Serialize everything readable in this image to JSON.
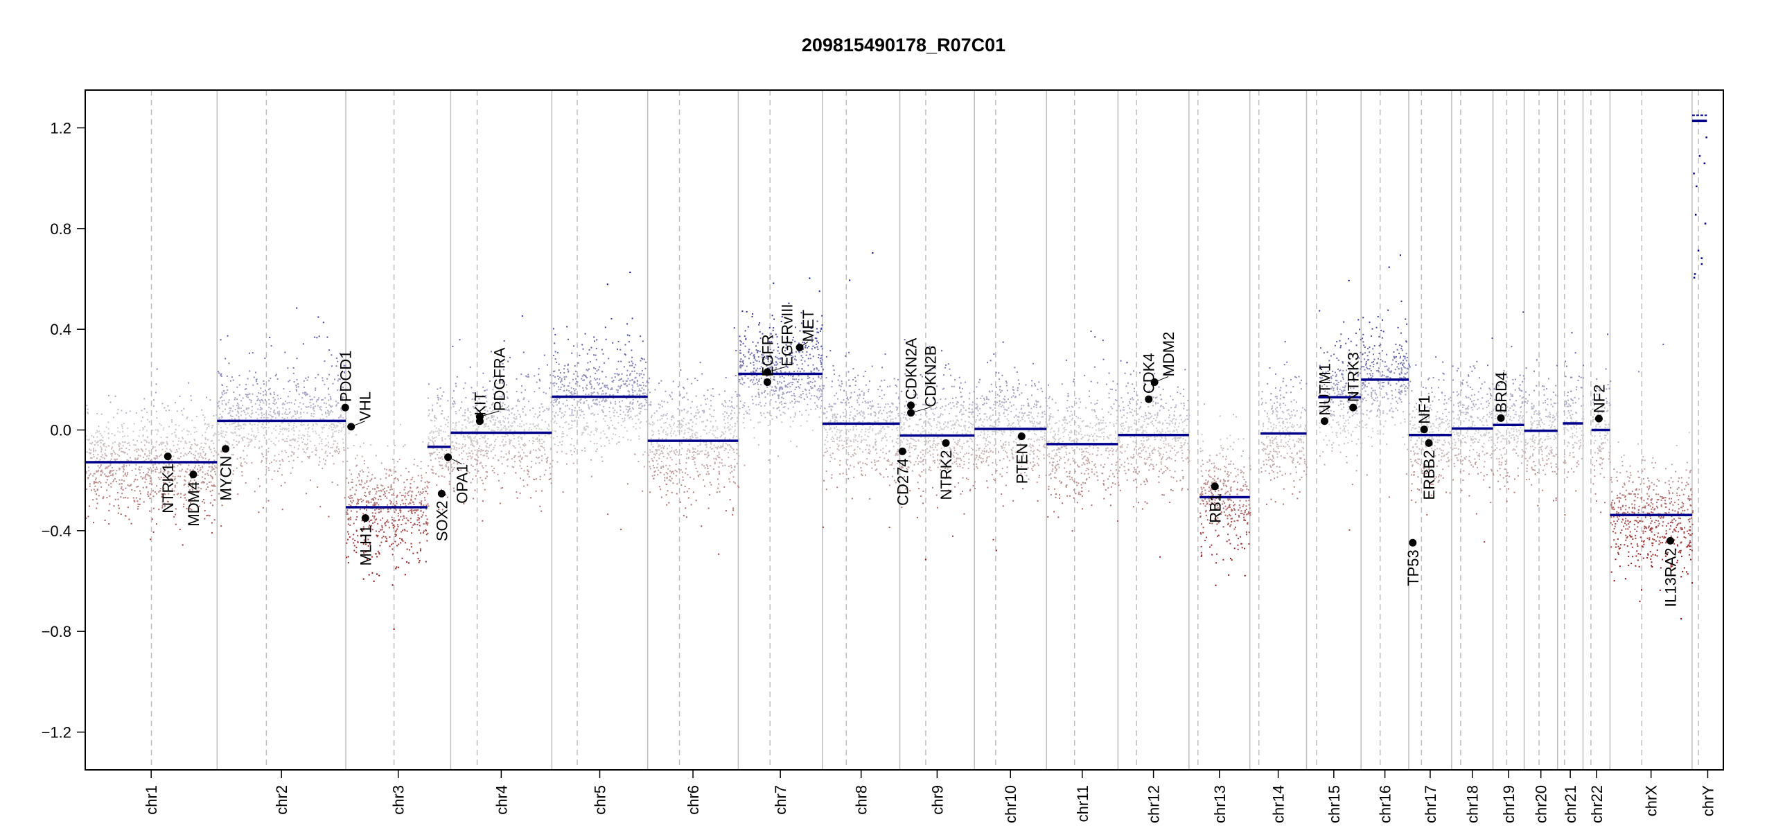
{
  "chart_data": {
    "type": "scatter",
    "title": "209815490178_R07C01",
    "xlabel": "",
    "ylabel": "",
    "ylim": [
      -1.35,
      1.35
    ],
    "yticks": [
      "1.2",
      "0.8",
      "0.4",
      "0.0",
      "−0.4",
      "−0.8",
      "−1.2"
    ],
    "ytick_values": [
      1.2,
      0.8,
      0.4,
      0.0,
      -0.4,
      -0.8,
      -1.2
    ],
    "grid": false,
    "colors": {
      "segment": "#00008b",
      "gain": "#00008b",
      "loss": "#8b0000",
      "neutral": "#d3d3d3",
      "gene": "#000000",
      "boundary": "#bebebe",
      "centromere": "#bebebe"
    },
    "chromosomes": [
      {
        "name": "chr1",
        "length_mb": 249,
        "centromere_mb": 125
      },
      {
        "name": "chr2",
        "length_mb": 243,
        "centromere_mb": 93
      },
      {
        "name": "chr3",
        "length_mb": 198,
        "centromere_mb": 91
      },
      {
        "name": "chr4",
        "length_mb": 191,
        "centromere_mb": 50
      },
      {
        "name": "chr5",
        "length_mb": 181,
        "centromere_mb": 48
      },
      {
        "name": "chr6",
        "length_mb": 171,
        "centromere_mb": 60
      },
      {
        "name": "chr7",
        "length_mb": 159,
        "centromere_mb": 60
      },
      {
        "name": "chr8",
        "length_mb": 146,
        "centromere_mb": 45
      },
      {
        "name": "chr9",
        "length_mb": 141,
        "centromere_mb": 49
      },
      {
        "name": "chr10",
        "length_mb": 136,
        "centromere_mb": 40
      },
      {
        "name": "chr11",
        "length_mb": 135,
        "centromere_mb": 53
      },
      {
        "name": "chr12",
        "length_mb": 134,
        "centromere_mb": 35
      },
      {
        "name": "chr13",
        "length_mb": 115,
        "centromere_mb": 17
      },
      {
        "name": "chr14",
        "length_mb": 107,
        "centromere_mb": 17
      },
      {
        "name": "chr15",
        "length_mb": 103,
        "centromere_mb": 19
      },
      {
        "name": "chr16",
        "length_mb": 90,
        "centromere_mb": 36
      },
      {
        "name": "chr17",
        "length_mb": 81,
        "centromere_mb": 24
      },
      {
        "name": "chr18",
        "length_mb": 78,
        "centromere_mb": 17
      },
      {
        "name": "chr19",
        "length_mb": 59,
        "centromere_mb": 26
      },
      {
        "name": "chr20",
        "length_mb": 63,
        "centromere_mb": 28
      },
      {
        "name": "chr21",
        "length_mb": 48,
        "centromere_mb": 13
      },
      {
        "name": "chr22",
        "length_mb": 51,
        "centromere_mb": 15
      },
      {
        "name": "chrX",
        "length_mb": 155,
        "centromere_mb": 60
      },
      {
        "name": "chrY",
        "length_mb": 59,
        "centromere_mb": 12
      }
    ],
    "segments": [
      {
        "chr": "chr1",
        "start_mb": 0,
        "end_mb": 249,
        "value": -0.128
      },
      {
        "chr": "chr2",
        "start_mb": 0,
        "end_mb": 243,
        "value": 0.036
      },
      {
        "chr": "chr3",
        "start_mb": 0,
        "end_mb": 154,
        "value": -0.307
      },
      {
        "chr": "chr3",
        "start_mb": 154,
        "end_mb": 198,
        "value": -0.067
      },
      {
        "chr": "chr4",
        "start_mb": 0,
        "end_mb": 191,
        "value": -0.011
      },
      {
        "chr": "chr5",
        "start_mb": 0,
        "end_mb": 181,
        "value": 0.132
      },
      {
        "chr": "chr6",
        "start_mb": 0,
        "end_mb": 171,
        "value": -0.043
      },
      {
        "chr": "chr7",
        "start_mb": 0,
        "end_mb": 159,
        "value": 0.223
      },
      {
        "chr": "chr8",
        "start_mb": 0,
        "end_mb": 146,
        "value": 0.025
      },
      {
        "chr": "chr9",
        "start_mb": 0,
        "end_mb": 141,
        "value": -0.022
      },
      {
        "chr": "chr10",
        "start_mb": 0,
        "end_mb": 136,
        "value": 0.004
      },
      {
        "chr": "chr11",
        "start_mb": 0,
        "end_mb": 135,
        "value": -0.056
      },
      {
        "chr": "chr12",
        "start_mb": 0,
        "end_mb": 134,
        "value": -0.02
      },
      {
        "chr": "chr13",
        "start_mb": 20,
        "end_mb": 115,
        "value": -0.267
      },
      {
        "chr": "chr14",
        "start_mb": 20,
        "end_mb": 107,
        "value": -0.014
      },
      {
        "chr": "chr15",
        "start_mb": 22,
        "end_mb": 103,
        "value": 0.13
      },
      {
        "chr": "chr16",
        "start_mb": 0,
        "end_mb": 90,
        "value": 0.2
      },
      {
        "chr": "chr17",
        "start_mb": 0,
        "end_mb": 81,
        "value": -0.02
      },
      {
        "chr": "chr18",
        "start_mb": 0,
        "end_mb": 78,
        "value": 0.006
      },
      {
        "chr": "chr19",
        "start_mb": 0,
        "end_mb": 59,
        "value": 0.02
      },
      {
        "chr": "chr20",
        "start_mb": 0,
        "end_mb": 63,
        "value": -0.003
      },
      {
        "chr": "chr21",
        "start_mb": 10,
        "end_mb": 48,
        "value": 0.026
      },
      {
        "chr": "chr22",
        "start_mb": 16,
        "end_mb": 51,
        "value": 0.0
      },
      {
        "chr": "chrX",
        "start_mb": 0,
        "end_mb": 155,
        "value": -0.338
      },
      {
        "chr": "chrY",
        "start_mb": 0,
        "end_mb": 28,
        "value": 1.228
      },
      {
        "chr": "chrY",
        "start_mb": 0,
        "end_mb": 28,
        "value": 1.25
      }
    ],
    "genes": [
      {
        "name": "NTRK1",
        "chr": "chr1",
        "pos_mb": 156,
        "value": -0.105,
        "label_side": "below"
      },
      {
        "name": "MDM4",
        "chr": "chr1",
        "pos_mb": 204,
        "value": -0.177,
        "label_side": "below"
      },
      {
        "name": "MYCN",
        "chr": "chr2",
        "pos_mb": 16,
        "value": -0.075,
        "label_side": "below"
      },
      {
        "name": "PDCD1",
        "chr": "chr2",
        "pos_mb": 242,
        "value": 0.089,
        "label_side": "above"
      },
      {
        "name": "VHL",
        "chr": "chr3",
        "pos_mb": 10,
        "value": 0.013,
        "label_side": "above"
      },
      {
        "name": "MLH1",
        "chr": "chr3",
        "pos_mb": 37,
        "value": -0.35,
        "label_side": "below"
      },
      {
        "name": "SOX2",
        "chr": "chr3",
        "pos_mb": 181,
        "value": -0.253,
        "label_side": "below"
      },
      {
        "name": "OPA1",
        "chr": "chr3",
        "pos_mb": 193,
        "value": -0.108,
        "label_side": "below"
      },
      {
        "name": "KIT",
        "chr": "chr4",
        "pos_mb": 55,
        "value": 0.035,
        "label_side": "above"
      },
      {
        "name": "PDGFRA",
        "chr": "chr4",
        "pos_mb": 55,
        "value": 0.053,
        "label_side": "above"
      },
      {
        "name": "EGFR",
        "chr": "chr7",
        "pos_mb": 55,
        "value": 0.19,
        "label_side": "above"
      },
      {
        "name": "EGFRvIII",
        "chr": "chr7",
        "pos_mb": 55,
        "value": 0.23,
        "label_side": "above"
      },
      {
        "name": "MET",
        "chr": "chr7",
        "pos_mb": 116,
        "value": 0.328,
        "label_side": "above"
      },
      {
        "name": "CD274",
        "chr": "chr9",
        "pos_mb": 5,
        "value": -0.085,
        "label_side": "below"
      },
      {
        "name": "CDKN2A",
        "chr": "chr9",
        "pos_mb": 21,
        "value": 0.098,
        "label_side": "above"
      },
      {
        "name": "CDKN2B",
        "chr": "chr9",
        "pos_mb": 21,
        "value": 0.068,
        "label_side": "above"
      },
      {
        "name": "NTRK2",
        "chr": "chr9",
        "pos_mb": 87,
        "value": -0.052,
        "label_side": "below"
      },
      {
        "name": "PTEN",
        "chr": "chr10",
        "pos_mb": 89,
        "value": -0.025,
        "label_side": "below"
      },
      {
        "name": "CDK4",
        "chr": "chr12",
        "pos_mb": 58,
        "value": 0.122,
        "label_side": "above"
      },
      {
        "name": "MDM2",
        "chr": "chr12",
        "pos_mb": 69,
        "value": 0.19,
        "label_side": "above"
      },
      {
        "name": "RB1",
        "chr": "chr13",
        "pos_mb": 49,
        "value": -0.224,
        "label_side": "below"
      },
      {
        "name": "NUTM1",
        "chr": "chr15",
        "pos_mb": 34,
        "value": 0.035,
        "label_side": "above"
      },
      {
        "name": "NTRK3",
        "chr": "chr15",
        "pos_mb": 88,
        "value": 0.089,
        "label_side": "above"
      },
      {
        "name": "TP53",
        "chr": "chr17",
        "pos_mb": 7.6,
        "value": -0.448,
        "label_side": "below"
      },
      {
        "name": "NF1",
        "chr": "chr17",
        "pos_mb": 29,
        "value": 0.002,
        "label_side": "above"
      },
      {
        "name": "ERBB2",
        "chr": "chr17",
        "pos_mb": 38,
        "value": -0.052,
        "label_side": "below"
      },
      {
        "name": "BRD4",
        "chr": "chr19",
        "pos_mb": 15,
        "value": 0.047,
        "label_side": "above"
      },
      {
        "name": "NF2",
        "chr": "chr22",
        "pos_mb": 30,
        "value": 0.045,
        "label_side": "above"
      },
      {
        "name": "IL13RA2",
        "chr": "chrX",
        "pos_mb": 114,
        "value": -0.44,
        "label_side": "below"
      }
    ]
  }
}
